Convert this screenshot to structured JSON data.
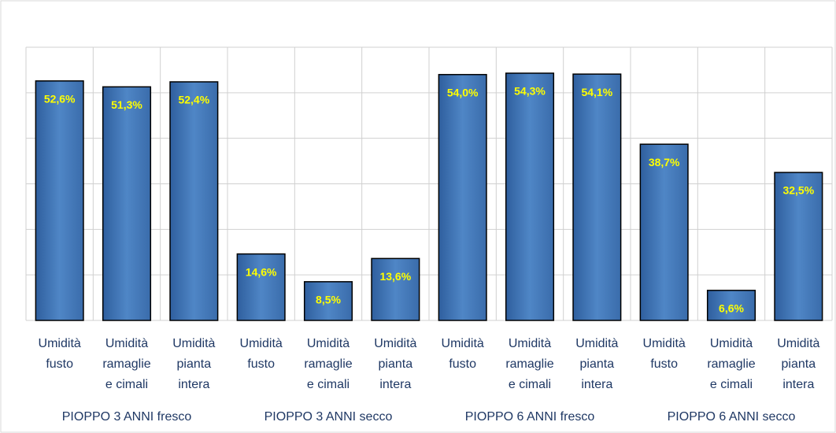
{
  "chart_data": {
    "type": "bar",
    "groups": [
      "PIOPPO 3 ANNI fresco",
      "PIOPPO 3 ANNI secco",
      "PIOPPO 6 ANNI fresco",
      "PIOPPO 6 ANNI secco"
    ],
    "categories": [
      [
        "Umidità",
        "fusto"
      ],
      [
        "Umidità",
        "ramaglie",
        "e cimali"
      ],
      [
        "Umidità",
        "pianta",
        "intera"
      ],
      [
        "Umidità",
        "fusto"
      ],
      [
        "Umidità",
        "ramaglie",
        "e cimali"
      ],
      [
        "Umidità",
        "pianta",
        "intera"
      ],
      [
        "Umidità",
        "fusto"
      ],
      [
        "Umidità",
        "ramaglie",
        "e cimali"
      ],
      [
        "Umidità",
        "pianta",
        "intera"
      ],
      [
        "Umidità",
        "fusto"
      ],
      [
        "Umidità",
        "ramaglie",
        "e cimali"
      ],
      [
        "Umidità",
        "pianta",
        "intera"
      ]
    ],
    "values": [
      52.6,
      51.3,
      52.4,
      14.6,
      8.5,
      13.6,
      54.0,
      54.3,
      54.1,
      38.7,
      6.6,
      32.5
    ],
    "value_labels": [
      "52,6%",
      "51,3%",
      "52,4%",
      "14,6%",
      "8,5%",
      "13,6%",
      "54,0%",
      "54,3%",
      "54,1%",
      "38,7%",
      "6,6%",
      "32,5%"
    ],
    "color": "#4a7ebb",
    "ylim": [
      0,
      60
    ],
    "yticks": [
      0,
      10,
      20,
      30,
      40,
      50,
      60
    ],
    "grid": true
  }
}
